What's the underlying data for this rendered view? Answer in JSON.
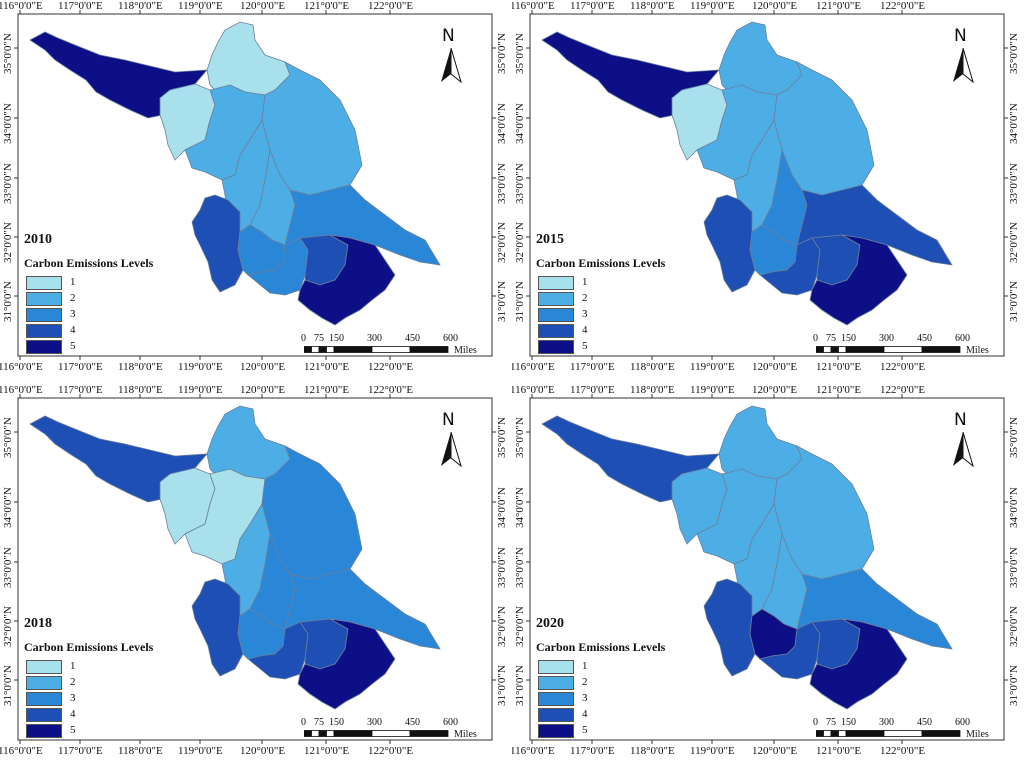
{
  "colors": {
    "level1": "#a8e0ec",
    "level2": "#4daee6",
    "level3": "#2a86d6",
    "level4": "#1e4fb4",
    "level5": "#0d0f86",
    "border": "#6c7f9c"
  },
  "axes": {
    "lon_labels": [
      "116°0'0\"E",
      "117°0'0\"E",
      "118°0'0\"E",
      "119°0'0\"E",
      "120°0'0\"E",
      "121°0'0\"E",
      "122°0'0\"E"
    ],
    "lat_labels": [
      "31°0'0\"N",
      "32°0'0\"N",
      "33°0'0\"N",
      "34°0'0\"N",
      "35°0'0\"N"
    ]
  },
  "legend": {
    "title": "Carbon Emissions Levels",
    "levels": [
      "1",
      "2",
      "3",
      "4",
      "5"
    ]
  },
  "north_arrow": {
    "label": "N"
  },
  "scale_bar": {
    "ticks": [
      "0",
      "75",
      "150",
      "300",
      "450",
      "600"
    ],
    "units": "Miles"
  },
  "panels": [
    {
      "year": "2010",
      "region_levels": {
        "xuzhou": 5,
        "suqian": 1,
        "lianyungang": 1,
        "huaian": 2,
        "yancheng": 2,
        "yangzhou": 2,
        "taizhou": 2,
        "nantong": 3,
        "nanjing": 4,
        "zhenjiang": 3,
        "changzhou": 3,
        "wuxi": 4,
        "suzhou": 5
      }
    },
    {
      "year": "2015",
      "region_levels": {
        "xuzhou": 5,
        "suqian": 1,
        "lianyungang": 2,
        "huaian": 2,
        "yancheng": 2,
        "yangzhou": 2,
        "taizhou": 3,
        "nantong": 4,
        "nanjing": 4,
        "zhenjiang": 3,
        "changzhou": 4,
        "wuxi": 4,
        "suzhou": 5
      }
    },
    {
      "year": "2018",
      "region_levels": {
        "xuzhou": 4,
        "suqian": 1,
        "lianyungang": 2,
        "huaian": 1,
        "yancheng": 3,
        "yangzhou": 2,
        "taizhou": 3,
        "nantong": 3,
        "nanjing": 4,
        "zhenjiang": 3,
        "changzhou": 4,
        "wuxi": 4,
        "suzhou": 5
      }
    },
    {
      "year": "2020",
      "region_levels": {
        "xuzhou": 4,
        "suqian": 2,
        "lianyungang": 2,
        "huaian": 2,
        "yancheng": 2,
        "yangzhou": 2,
        "taizhou": 2,
        "nantong": 3,
        "nanjing": 4,
        "zhenjiang": 5,
        "changzhou": 4,
        "wuxi": 4,
        "suzhou": 5
      }
    }
  ]
}
